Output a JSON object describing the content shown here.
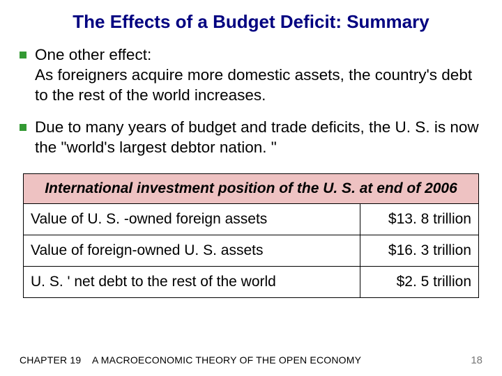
{
  "title": "The Effects of a Budget Deficit:  Summary",
  "bullets": [
    {
      "lead": "One other effect:",
      "body": "As foreigners acquire more domestic assets, the country's debt to the rest of the world increases."
    },
    {
      "lead": "",
      "body": "Due to many years of budget and trade deficits, the U. S. is now the \"world's largest debtor nation. \""
    }
  ],
  "table": {
    "header": "International investment position of the U. S. at end of 2006",
    "rows": [
      {
        "label": "Value of U. S. -owned foreign assets",
        "value": "$13. 8 trillion"
      },
      {
        "label": "Value of foreign-owned U. S. assets",
        "value": "$16. 3 trillion"
      },
      {
        "label": "U. S. ' net debt to the rest of the world",
        "value": "$2. 5 trillion"
      }
    ],
    "header_bg": "#eec2c2",
    "border_color": "#000000",
    "label_fontsize": 21,
    "value_fontsize": 21
  },
  "footer": {
    "chapter": "CHAPTER 19",
    "booktitle": "A MACROECONOMIC THEORY OF THE OPEN ECONOMY",
    "page": "18"
  },
  "colors": {
    "title": "#000080",
    "bullet": "#339933",
    "text": "#000000",
    "page_number": "#777777",
    "background": "#ffffff"
  }
}
